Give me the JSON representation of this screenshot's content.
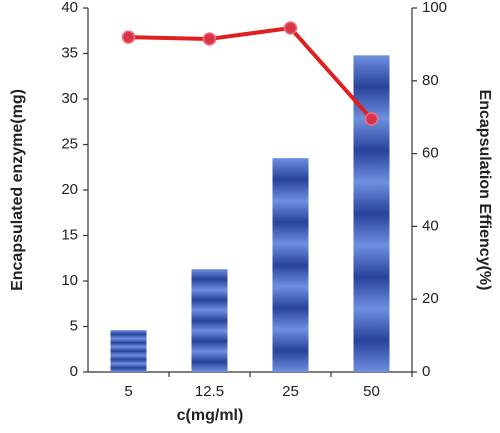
{
  "chart_data": {
    "type": "bar_line",
    "categories": [
      "5",
      "12.5",
      "25",
      "50"
    ],
    "x_label": "c(mg/ml)",
    "y_label": "Encapsulated enzyme(mg)",
    "y2_label": "Encapsulation Effiency(%)",
    "series": [
      {
        "name": "Encapsulated enzyme",
        "type": "bar",
        "color": "#2f4fa8",
        "values": [
          4.6,
          11.3,
          23.5,
          34.8
        ]
      },
      {
        "name": "Encapsulation efficiency",
        "type": "line",
        "axis": "y2",
        "color": "#e02020",
        "values": [
          92,
          91.5,
          94.5,
          69.5
        ]
      }
    ],
    "ylim": [
      0,
      40
    ],
    "yticks": [
      0,
      5,
      10,
      15,
      20,
      25,
      30,
      35,
      40
    ],
    "y2lim": [
      0,
      100
    ],
    "y2ticks": [
      0,
      20,
      40,
      60,
      80,
      100
    ]
  }
}
